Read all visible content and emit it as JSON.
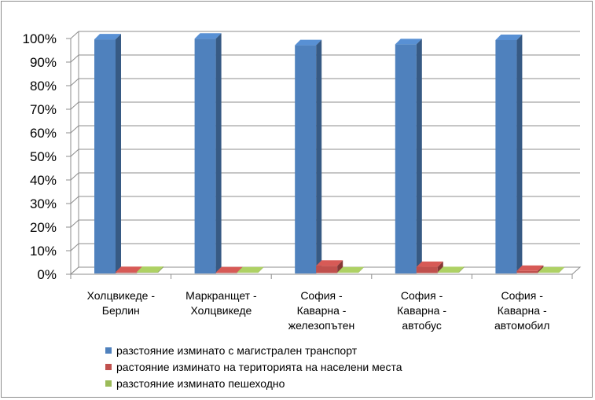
{
  "chart_data": {
    "type": "bar",
    "style": "3d-clustered-column",
    "categories": [
      [
        "Холцвикеде -",
        "Берлин"
      ],
      [
        "Маркранщет -",
        "Холцвикеде"
      ],
      [
        "София -",
        "Каварна -",
        "железопътен"
      ],
      [
        "София -",
        "Каварна -",
        "автобус"
      ],
      [
        "София -",
        "Каварна -",
        "автомобил"
      ]
    ],
    "series": [
      {
        "name": "разстояние изминато с магистрален транспорт",
        "color": "#4F81BD",
        "values": [
          99.3,
          99.6,
          96.8,
          97.2,
          99.0
        ]
      },
      {
        "name": "растояние изминато на територията на населени места",
        "color": "#C0504D",
        "values": [
          0.4,
          0.3,
          3.1,
          2.6,
          0.9
        ]
      },
      {
        "name": "разстояние изминато пешеходно",
        "color": "#9BBB59",
        "values": [
          0.3,
          0.1,
          0.1,
          0.2,
          0.1
        ]
      }
    ],
    "yticks": [
      "0%",
      "10%",
      "20%",
      "30%",
      "40%",
      "50%",
      "60%",
      "70%",
      "80%",
      "90%",
      "100%"
    ],
    "ylim": [
      0,
      100
    ],
    "grid": true,
    "legend_position": "bottom"
  }
}
